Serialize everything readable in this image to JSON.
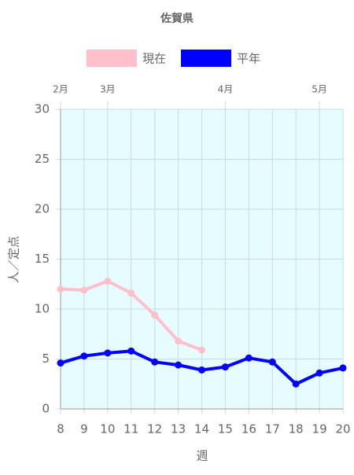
{
  "chart_data": {
    "type": "line",
    "title": "佐賀県",
    "x": [
      8,
      9,
      10,
      11,
      12,
      13,
      14,
      15,
      16,
      17,
      18,
      19,
      20
    ],
    "series": [
      {
        "name": "現在",
        "color": "#ffc0cb",
        "values": [
          12.0,
          11.9,
          12.8,
          11.6,
          9.4,
          6.8,
          5.9,
          null,
          null,
          null,
          null,
          null,
          null
        ]
      },
      {
        "name": "平年",
        "color": "#0000ff",
        "values": [
          4.6,
          5.3,
          5.6,
          5.8,
          4.7,
          4.4,
          3.9,
          4.2,
          5.1,
          4.7,
          2.5,
          3.6,
          4.1
        ]
      }
    ],
    "xlim": [
      8,
      20
    ],
    "xticks": [
      8,
      9,
      10,
      11,
      12,
      13,
      14,
      15,
      16,
      17,
      18,
      19,
      20
    ],
    "ylim": [
      0,
      30
    ],
    "yticks": [
      0,
      5,
      10,
      15,
      20,
      25,
      30
    ],
    "x2ticks": [
      {
        "value": 8,
        "label": "2月"
      },
      {
        "value": 10,
        "label": "3月"
      },
      {
        "value": 15,
        "label": "4月"
      },
      {
        "value": 19,
        "label": "5月"
      }
    ],
    "xlabel": "週",
    "ylabel": "人／定点",
    "grid": true,
    "plot_background": "#e6fcff"
  }
}
